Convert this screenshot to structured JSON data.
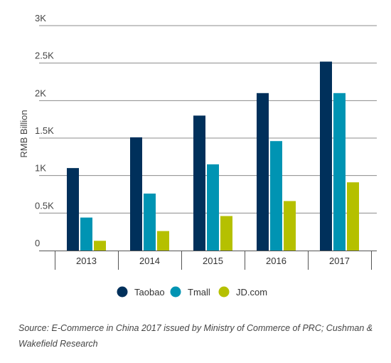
{
  "chart_data": {
    "type": "bar",
    "title": "",
    "xlabel": "",
    "ylabel": "RMB Billion",
    "categories": [
      "2013",
      "2014",
      "2015",
      "2016",
      "2017"
    ],
    "series": [
      {
        "name": "Taobao",
        "color": "#00305b",
        "values": [
          1100,
          1510,
          1800,
          2100,
          2520
        ]
      },
      {
        "name": "Tmall",
        "color": "#0094b3",
        "values": [
          440,
          760,
          1150,
          1460,
          2100
        ]
      },
      {
        "name": "JD.com",
        "color": "#b5c000",
        "values": [
          130,
          260,
          460,
          660,
          910
        ]
      }
    ],
    "ylim": [
      0,
      3000
    ],
    "yticks": [
      {
        "value": 0,
        "label": "0"
      },
      {
        "value": 500,
        "label": "0.5K"
      },
      {
        "value": 1000,
        "label": "1K"
      },
      {
        "value": 1500,
        "label": "1.5K"
      },
      {
        "value": 2000,
        "label": "2K"
      },
      {
        "value": 2500,
        "label": "2.5K"
      },
      {
        "value": 3000,
        "label": "3K"
      }
    ],
    "grid": true,
    "legend_position": "bottom"
  },
  "source_note": "Source: E-Commerce in China 2017 issued by Ministry of Commerce of PRC; Cushman & Wakefield Research"
}
